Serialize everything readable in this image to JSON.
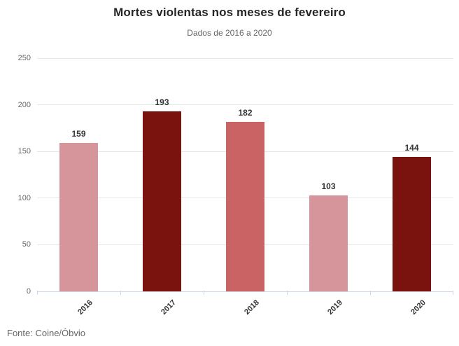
{
  "header": {
    "title": "Mortes violentas nos meses de fevereiro",
    "subtitle": "Dados de 2016 a 2020"
  },
  "footer": {
    "source": "Fonte: Coine/Óbvio"
  },
  "colors": {
    "rose_light": "#d6959b",
    "red_dark": "#7a130d",
    "red_medium": "#c96364",
    "gridline": "#e6e6e6",
    "axis_line": "#ccd6eb",
    "title_text": "#262626",
    "muted_text": "#666666",
    "value_text": "#333333"
  },
  "chart_data": {
    "type": "bar",
    "title": "Mortes violentas nos meses de fevereiro",
    "subtitle": "Dados de 2016 a 2020",
    "categories": [
      "2016",
      "2017",
      "2018",
      "2019",
      "2020"
    ],
    "values": [
      159,
      193,
      182,
      103,
      144
    ],
    "data_labels": [
      "159",
      "193",
      "182",
      "103",
      "144"
    ],
    "bar_colors": [
      "#d6959b",
      "#7a130d",
      "#c96364",
      "#d6959b",
      "#7a130d"
    ],
    "xlabel": "",
    "ylabel": "",
    "ylim": [
      0,
      250
    ],
    "yticks": [
      0,
      50,
      100,
      150,
      200,
      250
    ],
    "grid": true,
    "legend": "none",
    "source": "Fonte: Coine/Óbvio"
  }
}
